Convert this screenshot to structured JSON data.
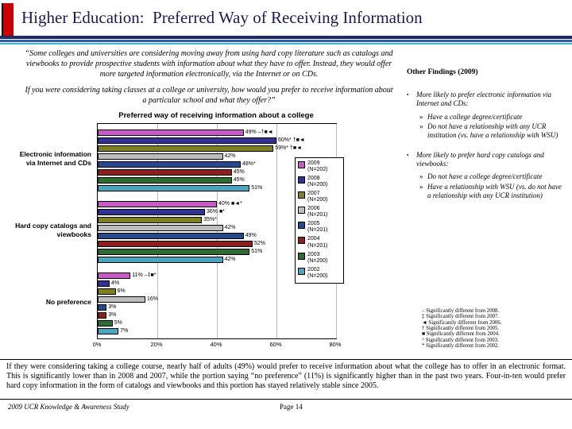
{
  "slide": {
    "title": "Higher Education:  Preferred Way of Receiving Information",
    "quote1": "“Some colleges and universities are considering moving away from using hard copy literature such as catalogs and viewbooks to provide prospective students with information about what they have to offer.  Instead, they would offer more targeted information electronically, via the Internet or on CDs.",
    "quote2": "If you were considering taking classes at a college or university, how would you prefer to receive information about a particular school and what they offer?”",
    "summary": "If they were considering taking a college course, nearly half of adults (49%) would prefer to receive information about what the college has to offer in an electronic format.  This is significantly lower than in 2008 and 2007, while the portion saying “no preference” (11%) is significantly higher than in the past two years.  Four-in-ten would prefer hard copy information in the form of catalogs and viewbooks and this portion has stayed relatively stable since 2005.",
    "footer_left": "2009 UCR Knowledge & Awareness Study",
    "footer_center": "Page 14"
  },
  "other_findings": {
    "heading": "Other Findings (2009)",
    "bullet_marker": "▪",
    "sub_marker": "»",
    "bullets": [
      {
        "text": "More likely to prefer electronic information via Internet and CDs:",
        "subs": [
          "Have a college degree/certificate",
          "Do not have a relationship with any UCR institution (vs. have a relationship with WSU)"
        ]
      },
      {
        "text": "More likely to prefer hard copy catalogs and viewbooks:",
        "subs": [
          "Do not have a college degree/certificate",
          "Have a relationship with WSU (vs. do not have a relationship with any UCR institution)"
        ]
      }
    ]
  },
  "footnotes": [
    "– Significantly different from 2008.",
    "‡ Significantly different from 2007.",
    "◄ Significantly different from 2006.",
    "† Significantly different from 2005.",
    "■ Significantly different from 2004.",
    "^ Significantly different from 2003.",
    "* Significantly different from 2002."
  ],
  "chart_data": {
    "type": "bar",
    "orientation": "horizontal",
    "title": "Preferred way of receiving information about a college",
    "categories": [
      "Electronic information via Internet and CDs",
      "Hard copy catalogs and viewbooks",
      "No preference"
    ],
    "xlim": [
      0,
      80
    ],
    "xticks": [
      0,
      20,
      40,
      60,
      80
    ],
    "grid": true,
    "legend_position": "right-overlay",
    "series": [
      {
        "name": "2009 (N=202)",
        "color": "#c65bc4",
        "values": [
          49,
          40,
          11
        ],
        "bar_labels": [
          "49% –†■◄",
          "40% ■◄*",
          "11% –‡■*"
        ]
      },
      {
        "name": "2008 (N=200)",
        "color": "#31318f",
        "values": [
          60,
          36,
          4
        ],
        "bar_labels": [
          "60%* †■◄",
          "36% ■*",
          "4%"
        ]
      },
      {
        "name": "2007 (N=200)",
        "color": "#7f7f24",
        "values": [
          59,
          35,
          6
        ],
        "bar_labels": [
          "59%* †■◄",
          "35%*",
          "6%"
        ]
      },
      {
        "name": "2006 (N=201)",
        "color": "#bdbdbd",
        "values": [
          42,
          42,
          16
        ],
        "bar_labels": [
          "42%",
          "42%",
          "16%"
        ]
      },
      {
        "name": "2005 (N=201)",
        "color": "#27498c",
        "values": [
          48,
          49,
          3
        ],
        "bar_labels": [
          "48%*",
          "49%",
          "3%"
        ]
      },
      {
        "name": "2004 (N=201)",
        "color": "#8a1f1f",
        "values": [
          45,
          52,
          3
        ],
        "bar_labels": [
          "45%",
          "52%",
          "3%"
        ]
      },
      {
        "name": "2003 (N=200)",
        "color": "#2e6b33",
        "values": [
          45,
          51,
          5
        ],
        "bar_labels": [
          "45%",
          "51%",
          "5%"
        ]
      },
      {
        "name": "2002 (N=200)",
        "color": "#4da4bf",
        "values": [
          51,
          42,
          7
        ],
        "bar_labels": [
          "51%",
          "42%",
          "7%"
        ]
      }
    ]
  }
}
